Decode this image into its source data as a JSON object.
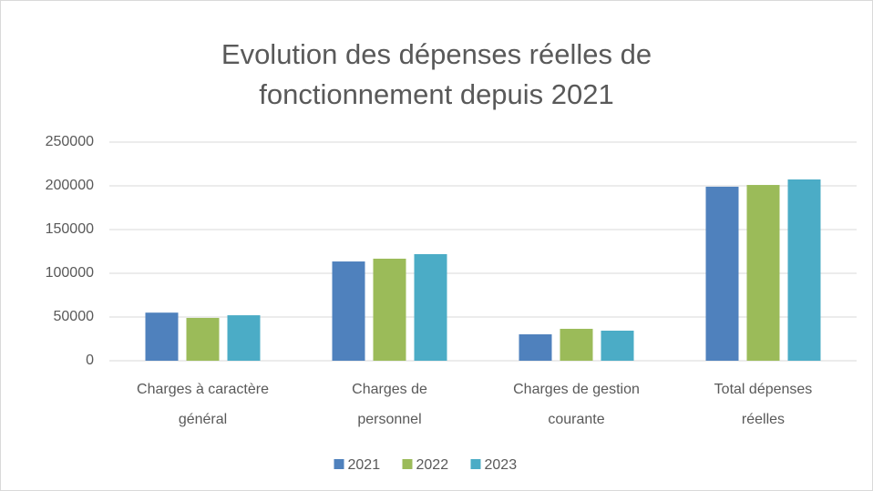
{
  "chart_data": {
    "type": "bar",
    "title": [
      "Evolution des dépenses réelles de",
      "fonctionnement depuis 2021"
    ],
    "categories": [
      [
        "Charges à caractère",
        "général"
      ],
      [
        "Charges de",
        "personnel"
      ],
      [
        "Charges de gestion",
        "courante"
      ],
      [
        "Total dépenses",
        "réelles"
      ]
    ],
    "series": [
      {
        "name": "2021",
        "color": "#4f81bd",
        "values": [
          55000,
          113500,
          30200,
          199000
        ]
      },
      {
        "name": "2022",
        "color": "#9bbb59",
        "values": [
          49000,
          116700,
          36500,
          201000
        ]
      },
      {
        "name": "2023",
        "color": "#4bacc6",
        "values": [
          52000,
          121900,
          34400,
          207300
        ]
      }
    ],
    "ylim": [
      0,
      250000
    ],
    "yticks": [
      0,
      50000,
      100000,
      150000,
      200000,
      250000
    ],
    "grid": true,
    "legend": "bottom"
  }
}
